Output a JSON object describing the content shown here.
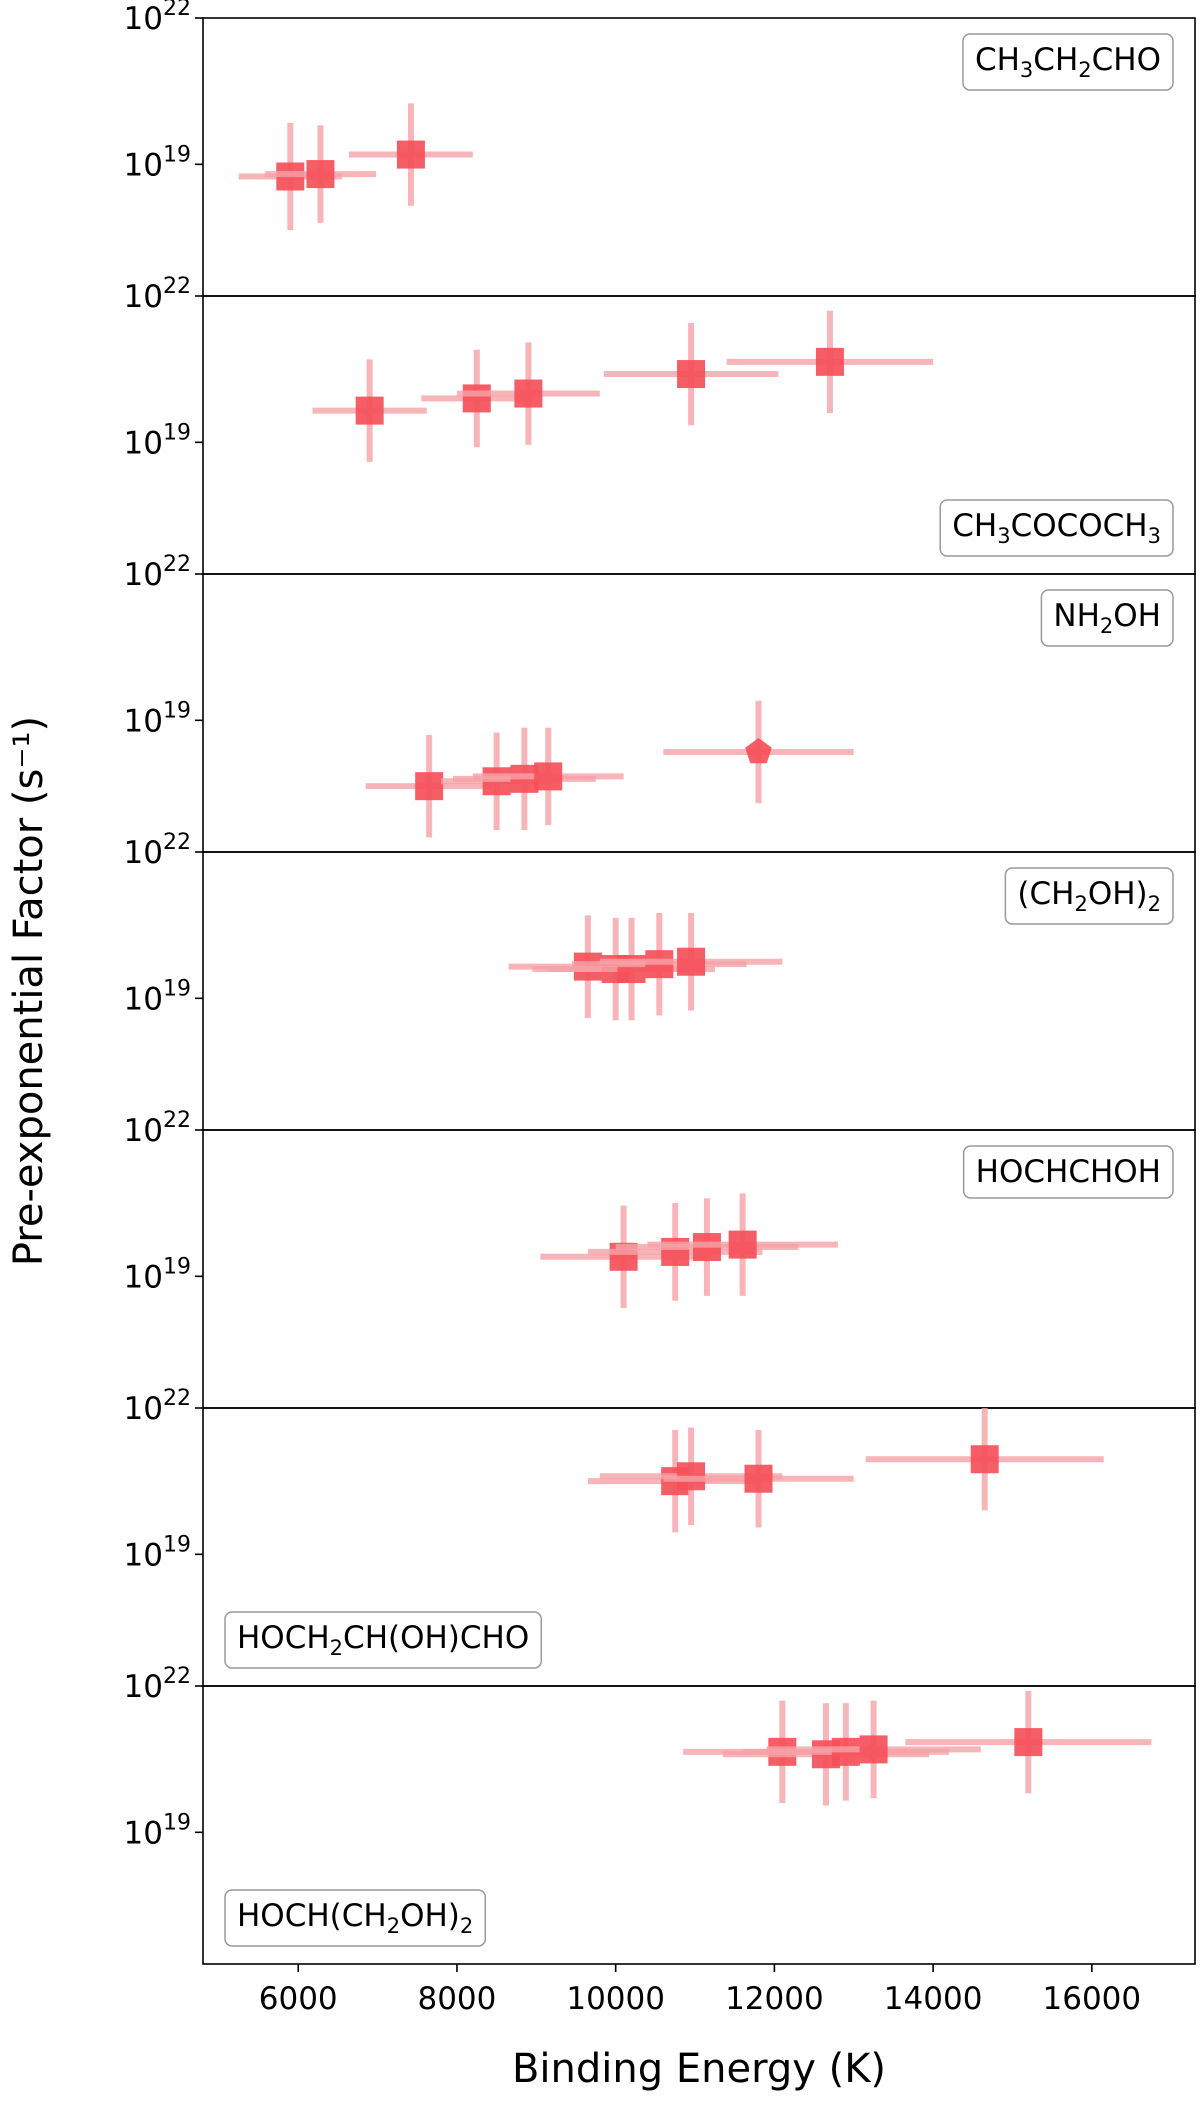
{
  "chart_data": {
    "type": "scatter",
    "xlabel": "Binding Energy (K)",
    "ylabel": "Pre-exponential Factor (s⁻¹)",
    "xlim": [
      4800,
      17300
    ],
    "xticks": [
      6000,
      8000,
      10000,
      12000,
      14000,
      16000
    ],
    "y_scale": "log",
    "ylim_exponent": [
      16.3,
      22.0
    ],
    "yticks_exponent": [
      19,
      22
    ],
    "ytick_labels": [
      "10¹⁹",
      "10²²"
    ],
    "grid": false,
    "marker_color": "#f5505a",
    "errorbar_color": "#f5a3a8",
    "panels": [
      {
        "label": "CH₃CH₂CHO",
        "label_position": "top-right",
        "points": [
          {
            "x": 5900,
            "x_err": 650,
            "log_y": 18.75,
            "log_y_err": 1.1,
            "marker": "square"
          },
          {
            "x": 6280,
            "x_err": 700,
            "log_y": 18.8,
            "log_y_err": 1.0,
            "marker": "square"
          },
          {
            "x": 7420,
            "x_err": 780,
            "log_y": 19.2,
            "log_y_err": 1.05,
            "marker": "square"
          }
        ]
      },
      {
        "label": "CH₃COCOCH₃",
        "label_position": "bottom-right",
        "points": [
          {
            "x": 6900,
            "x_err": 720,
            "log_y": 19.65,
            "log_y_err": 1.05,
            "marker": "square"
          },
          {
            "x": 8250,
            "x_err": 700,
            "log_y": 19.9,
            "log_y_err": 1.0,
            "marker": "square"
          },
          {
            "x": 8900,
            "x_err": 900,
            "log_y": 20.0,
            "log_y_err": 1.05,
            "marker": "square"
          },
          {
            "x": 10950,
            "x_err": 1100,
            "log_y": 20.4,
            "log_y_err": 1.05,
            "marker": "square"
          },
          {
            "x": 12700,
            "x_err": 1300,
            "log_y": 20.65,
            "log_y_err": 1.05,
            "marker": "square"
          }
        ]
      },
      {
        "label": "NH₂OH",
        "label_position": "top-right",
        "points": [
          {
            "x": 7650,
            "x_err": 800,
            "log_y": 17.65,
            "log_y_err": 1.05,
            "marker": "square"
          },
          {
            "x": 8500,
            "x_err": 700,
            "log_y": 17.75,
            "log_y_err": 1.0,
            "marker": "square"
          },
          {
            "x": 8850,
            "x_err": 900,
            "log_y": 17.8,
            "log_y_err": 1.05,
            "marker": "square"
          },
          {
            "x": 9150,
            "x_err": 950,
            "log_y": 17.85,
            "log_y_err": 1.0,
            "marker": "square"
          },
          {
            "x": 11800,
            "x_err": 1200,
            "log_y": 18.35,
            "log_y_err": 1.05,
            "marker": "pentagon"
          }
        ]
      },
      {
        "label": "(CH₂OH)₂",
        "label_position": "top-right",
        "points": [
          {
            "x": 9650,
            "x_err": 1000,
            "log_y": 19.65,
            "log_y_err": 1.05,
            "marker": "square"
          },
          {
            "x": 10000,
            "x_err": 1050,
            "log_y": 19.6,
            "log_y_err": 1.05,
            "marker": "square"
          },
          {
            "x": 10200,
            "x_err": 1050,
            "log_y": 19.6,
            "log_y_err": 1.05,
            "marker": "square"
          },
          {
            "x": 10550,
            "x_err": 1100,
            "log_y": 19.7,
            "log_y_err": 1.05,
            "marker": "square"
          },
          {
            "x": 10950,
            "x_err": 1150,
            "log_y": 19.75,
            "log_y_err": 1.0,
            "marker": "square"
          }
        ]
      },
      {
        "label": "HOCHCHOH",
        "label_position": "top-right",
        "points": [
          {
            "x": 10100,
            "x_err": 1050,
            "log_y": 19.4,
            "log_y_err": 1.05,
            "marker": "square"
          },
          {
            "x": 10750,
            "x_err": 1100,
            "log_y": 19.5,
            "log_y_err": 1.0,
            "marker": "square"
          },
          {
            "x": 11150,
            "x_err": 1150,
            "log_y": 19.6,
            "log_y_err": 1.0,
            "marker": "square"
          },
          {
            "x": 11600,
            "x_err": 1200,
            "log_y": 19.65,
            "log_y_err": 1.05,
            "marker": "square"
          }
        ]
      },
      {
        "label": "HOCH₂CH(OH)CHO",
        "label_position": "bottom-left",
        "points": [
          {
            "x": 10750,
            "x_err": 1100,
            "log_y": 20.5,
            "log_y_err": 1.05,
            "marker": "square"
          },
          {
            "x": 10950,
            "x_err": 1150,
            "log_y": 20.6,
            "log_y_err": 1.0,
            "marker": "square"
          },
          {
            "x": 11800,
            "x_err": 1200,
            "log_y": 20.55,
            "log_y_err": 1.0,
            "marker": "square"
          },
          {
            "x": 14650,
            "x_err": 1500,
            "log_y": 20.95,
            "log_y_err": 1.05,
            "marker": "square"
          }
        ]
      },
      {
        "label": "HOCH(CH₂OH)₂",
        "label_position": "bottom-left",
        "points": [
          {
            "x": 12100,
            "x_err": 1250,
            "log_y": 20.65,
            "log_y_err": 1.05,
            "marker": "square"
          },
          {
            "x": 12650,
            "x_err": 1300,
            "log_y": 20.6,
            "log_y_err": 1.05,
            "marker": "square"
          },
          {
            "x": 12900,
            "x_err": 1300,
            "log_y": 20.65,
            "log_y_err": 1.0,
            "marker": "square"
          },
          {
            "x": 13250,
            "x_err": 1350,
            "log_y": 20.7,
            "log_y_err": 1.0,
            "marker": "square"
          },
          {
            "x": 15200,
            "x_err": 1550,
            "log_y": 20.85,
            "log_y_err": 1.05,
            "marker": "square"
          }
        ]
      }
    ]
  }
}
